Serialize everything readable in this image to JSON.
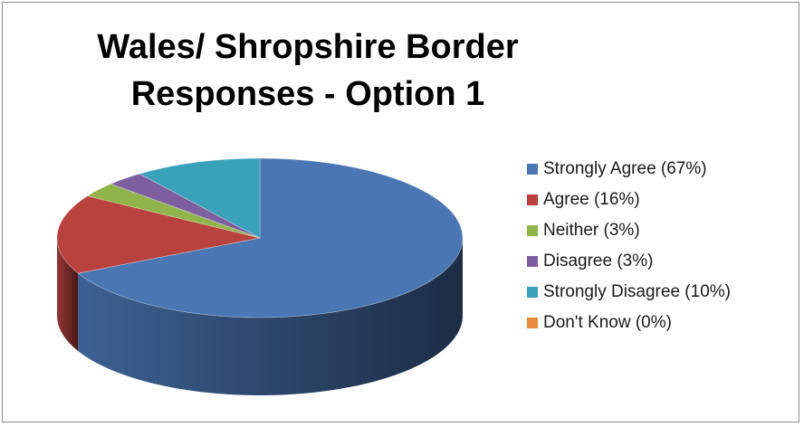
{
  "chart_data": {
    "type": "pie",
    "title": "Wales/ Shropshire Border Responses - Option 1",
    "title_lines": [
      "Wales/ Shropshire Border",
      "Responses - Option 1"
    ],
    "legend_position": "right",
    "three_d": true,
    "slices": [
      {
        "label": "Strongly Agree (67%)",
        "value": 67,
        "color": "#4a76b3"
      },
      {
        "label": "Agree (16%)",
        "value": 16,
        "color": "#b9423f"
      },
      {
        "label": "Neither (3%)",
        "value": 3,
        "color": "#90b44a"
      },
      {
        "label": "Disagree (3%)",
        "value": 3,
        "color": "#7d5fa0"
      },
      {
        "label": "Strongly Disagree (10%)",
        "value": 10,
        "color": "#3aa1bb"
      },
      {
        "label": "Don't Know (0%)",
        "value": 0,
        "color": "#e88b3a"
      }
    ]
  }
}
